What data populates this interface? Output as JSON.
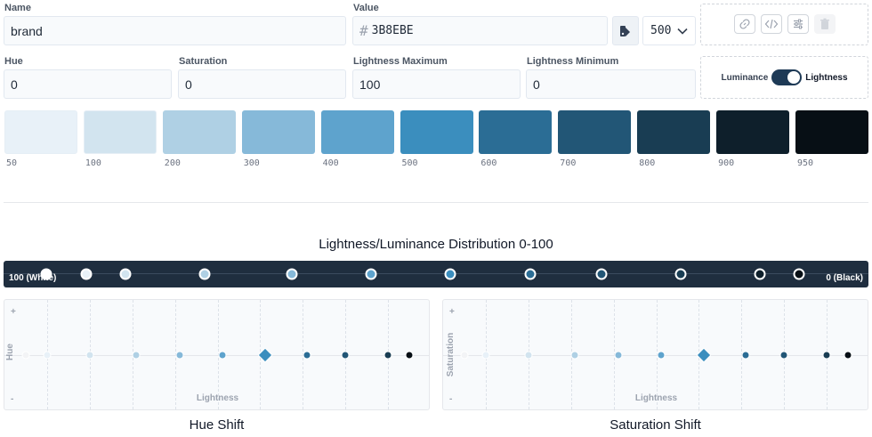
{
  "fields": {
    "name": {
      "label": "Name",
      "value": "brand"
    },
    "value": {
      "label": "Value",
      "hash": "#",
      "hex": "3B8EBE"
    },
    "stop_select": {
      "value": "500"
    },
    "hue": {
      "label": "Hue",
      "value": "0"
    },
    "saturation": {
      "label": "Saturation",
      "value": "0"
    },
    "lightness_max": {
      "label": "Lightness Maximum",
      "value": "100"
    },
    "lightness_min": {
      "label": "Lightness Minimum",
      "value": "0"
    }
  },
  "mode_toggle": {
    "left": "Luminance",
    "right": "Lightness",
    "state": "Lightness"
  },
  "palette": [
    {
      "stop": "50",
      "color": "#e8f1f8"
    },
    {
      "stop": "100",
      "color": "#d2e4ef"
    },
    {
      "stop": "200",
      "color": "#afd0e4"
    },
    {
      "stop": "300",
      "color": "#86b9d9"
    },
    {
      "stop": "400",
      "color": "#5ea3cd"
    },
    {
      "stop": "500",
      "color": "#3b8ebe"
    },
    {
      "stop": "600",
      "color": "#2b6d95"
    },
    {
      "stop": "700",
      "color": "#225676"
    },
    {
      "stop": "800",
      "color": "#193d53"
    },
    {
      "stop": "900",
      "color": "#0e1f2b"
    },
    {
      "stop": "950",
      "color": "#070f15"
    }
  ],
  "distribution": {
    "title": "Lightness/Luminance Distribution 0-100",
    "left_label": "100 (White)",
    "right_label": "0 (Black)",
    "handles": [
      {
        "stop": "50",
        "lightness": 95,
        "fill": "#e8f1f8"
      },
      {
        "stop": "100",
        "lightness": 90,
        "fill": "#d2e4ef"
      },
      {
        "stop": "200",
        "lightness": 80,
        "fill": "#afd0e4"
      },
      {
        "stop": "300",
        "lightness": 69,
        "fill": "#86b9d9"
      },
      {
        "stop": "400",
        "lightness": 59,
        "fill": "#5ea3cd"
      },
      {
        "stop": "500",
        "lightness": 49,
        "fill": "#3b8ebe"
      },
      {
        "stop": "600",
        "lightness": 39,
        "fill": "#2b6d95"
      },
      {
        "stop": "700",
        "lightness": 30,
        "fill": "#225676"
      },
      {
        "stop": "800",
        "lightness": 20,
        "fill": "#193d53"
      },
      {
        "stop": "900",
        "lightness": 10,
        "fill": "#0e1f2b"
      },
      {
        "stop": "950",
        "lightness": 5,
        "fill": "#070f15"
      }
    ]
  },
  "hue_graph": {
    "title": "Hue Shift",
    "y_label": "Hue",
    "x_label": "Lightness",
    "plus": "+",
    "minus": "-"
  },
  "saturation_graph": {
    "title": "Saturation Shift",
    "y_label": "Saturation",
    "x_label": "Lightness",
    "plus": "+",
    "minus": "-"
  },
  "shift_points": [
    {
      "stop": "white",
      "color": "#f3f4f6"
    },
    {
      "stop": "50",
      "color": "#e8f1f8"
    },
    {
      "stop": "100",
      "color": "#d2e4ef"
    },
    {
      "stop": "200",
      "color": "#afd0e4"
    },
    {
      "stop": "300",
      "color": "#86b9d9"
    },
    {
      "stop": "400",
      "color": "#5ea3cd"
    },
    {
      "stop": "500",
      "color": "#3b8ebe",
      "key": true
    },
    {
      "stop": "600",
      "color": "#2b6d95"
    },
    {
      "stop": "700",
      "color": "#225676"
    },
    {
      "stop": "800",
      "color": "#193d53"
    },
    {
      "stop": "900",
      "color": "#0e1f2b"
    },
    {
      "stop": "950",
      "color": "#070f15"
    }
  ]
}
